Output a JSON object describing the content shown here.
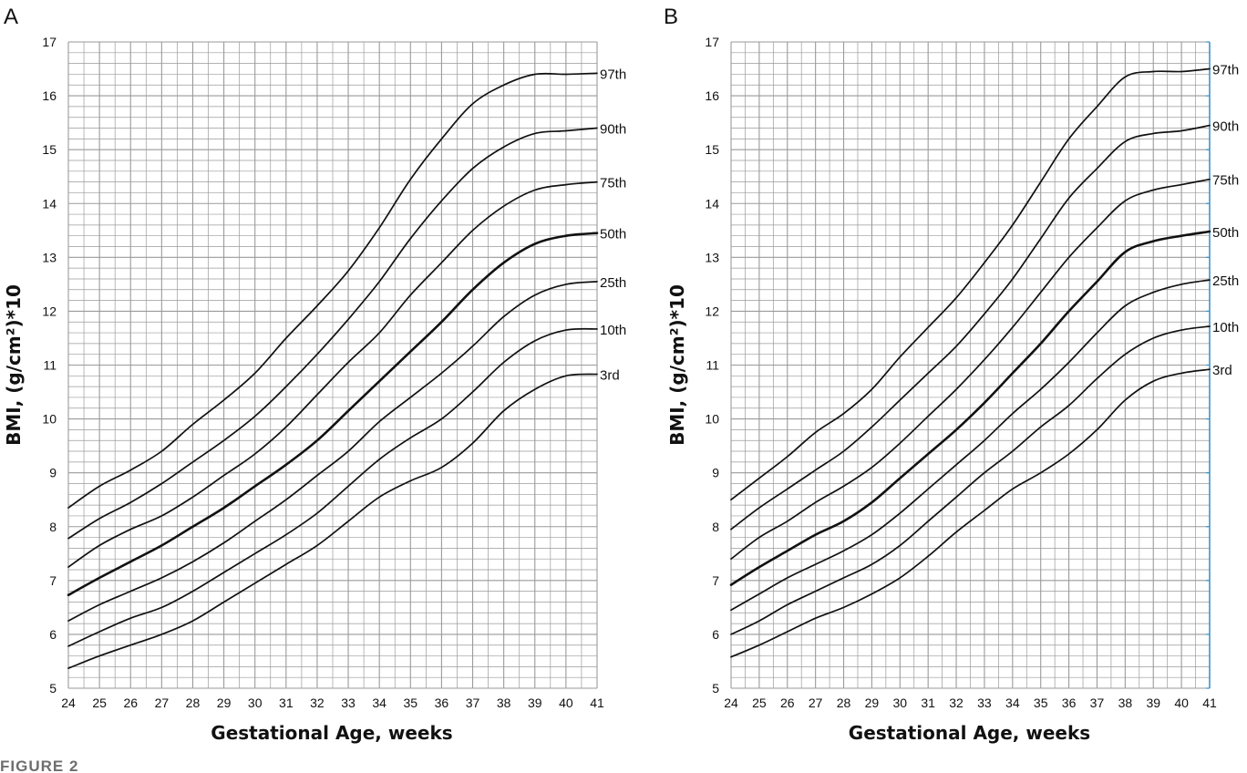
{
  "figure_caption": "FIGURE 2",
  "colors": {
    "grid": "#9a9a9a",
    "curve": "#111111",
    "panelB_right_axis": "#3a8fc9"
  },
  "chart_data": [
    {
      "type": "line",
      "panel": "A",
      "xlabel": "Gestational Age, weeks",
      "ylabel": "BMI, (g/cm²)*10",
      "xlim": [
        24,
        41
      ],
      "ylim": [
        5,
        17
      ],
      "x_ticks": [
        24,
        25,
        26,
        27,
        28,
        29,
        30,
        31,
        32,
        33,
        34,
        35,
        36,
        37,
        38,
        39,
        40,
        41
      ],
      "y_ticks": [
        5,
        6,
        7,
        8,
        9,
        10,
        11,
        12,
        13,
        14,
        15,
        16,
        17
      ],
      "grid": true,
      "x": [
        24,
        25,
        26,
        27,
        28,
        29,
        30,
        31,
        32,
        33,
        34,
        35,
        36,
        37,
        38,
        39,
        40,
        41
      ],
      "series": [
        {
          "name": "97th",
          "values": [
            8.35,
            8.75,
            9.05,
            9.4,
            9.9,
            10.35,
            10.85,
            11.5,
            12.1,
            12.75,
            13.55,
            14.45,
            15.2,
            15.85,
            16.2,
            16.4,
            16.4,
            16.42
          ]
        },
        {
          "name": "90th",
          "values": [
            7.78,
            8.15,
            8.45,
            8.8,
            9.2,
            9.6,
            10.05,
            10.6,
            11.2,
            11.85,
            12.55,
            13.35,
            14.05,
            14.65,
            15.05,
            15.3,
            15.35,
            15.4
          ]
        },
        {
          "name": "75th",
          "values": [
            7.25,
            7.65,
            7.95,
            8.2,
            8.55,
            8.95,
            9.35,
            9.85,
            10.45,
            11.05,
            11.6,
            12.3,
            12.9,
            13.5,
            13.95,
            14.25,
            14.35,
            14.4
          ]
        },
        {
          "name": "50th",
          "values": [
            6.73,
            7.05,
            7.35,
            7.65,
            8.0,
            8.35,
            8.75,
            9.15,
            9.6,
            10.15,
            10.7,
            11.25,
            11.8,
            12.4,
            12.9,
            13.25,
            13.4,
            13.45
          ]
        },
        {
          "name": "25th",
          "values": [
            6.25,
            6.55,
            6.8,
            7.05,
            7.35,
            7.7,
            8.1,
            8.5,
            8.95,
            9.4,
            9.95,
            10.4,
            10.85,
            11.35,
            11.9,
            12.3,
            12.5,
            12.55
          ]
        },
        {
          "name": "10th",
          "values": [
            5.78,
            6.05,
            6.3,
            6.5,
            6.8,
            7.15,
            7.5,
            7.85,
            8.25,
            8.75,
            9.25,
            9.65,
            10.0,
            10.5,
            11.05,
            11.45,
            11.65,
            11.67
          ]
        },
        {
          "name": "3rd",
          "values": [
            5.37,
            5.6,
            5.8,
            6.0,
            6.25,
            6.6,
            6.95,
            7.3,
            7.65,
            8.1,
            8.55,
            8.85,
            9.1,
            9.55,
            10.15,
            10.55,
            10.8,
            10.83
          ]
        }
      ]
    },
    {
      "type": "line",
      "panel": "B",
      "xlabel": "Gestational Age, weeks",
      "ylabel": "BMI, (g/cm²)*10",
      "xlim": [
        24,
        41
      ],
      "ylim": [
        5,
        17
      ],
      "x_ticks": [
        24,
        25,
        26,
        27,
        28,
        29,
        30,
        31,
        32,
        33,
        34,
        35,
        36,
        37,
        38,
        39,
        40,
        41
      ],
      "y_ticks": [
        5,
        6,
        7,
        8,
        9,
        10,
        11,
        12,
        13,
        14,
        15,
        16,
        17
      ],
      "grid": true,
      "x": [
        24,
        25,
        26,
        27,
        28,
        29,
        30,
        31,
        32,
        33,
        34,
        35,
        36,
        37,
        38,
        39,
        40,
        41
      ],
      "series": [
        {
          "name": "97th",
          "values": [
            8.5,
            8.9,
            9.3,
            9.75,
            10.1,
            10.55,
            11.15,
            11.7,
            12.25,
            12.9,
            13.6,
            14.4,
            15.2,
            15.8,
            16.35,
            16.45,
            16.45,
            16.5
          ]
        },
        {
          "name": "90th",
          "values": [
            7.95,
            8.35,
            8.7,
            9.05,
            9.4,
            9.85,
            10.35,
            10.85,
            11.35,
            11.95,
            12.6,
            13.35,
            14.1,
            14.65,
            15.15,
            15.3,
            15.35,
            15.45
          ]
        },
        {
          "name": "75th",
          "values": [
            7.4,
            7.8,
            8.1,
            8.45,
            8.75,
            9.1,
            9.55,
            10.05,
            10.55,
            11.1,
            11.7,
            12.35,
            13.0,
            13.55,
            14.05,
            14.25,
            14.35,
            14.45
          ]
        },
        {
          "name": "50th",
          "values": [
            6.92,
            7.25,
            7.55,
            7.85,
            8.1,
            8.45,
            8.9,
            9.35,
            9.8,
            10.3,
            10.85,
            11.4,
            12.0,
            12.55,
            13.1,
            13.3,
            13.4,
            13.48
          ]
        },
        {
          "name": "25th",
          "values": [
            6.45,
            6.75,
            7.05,
            7.3,
            7.55,
            7.85,
            8.25,
            8.7,
            9.15,
            9.6,
            10.1,
            10.55,
            11.05,
            11.6,
            12.1,
            12.35,
            12.5,
            12.58
          ]
        },
        {
          "name": "10th",
          "values": [
            6.0,
            6.25,
            6.55,
            6.8,
            7.05,
            7.3,
            7.65,
            8.1,
            8.55,
            9.0,
            9.4,
            9.85,
            10.25,
            10.75,
            11.2,
            11.5,
            11.65,
            11.72
          ]
        },
        {
          "name": "3rd",
          "values": [
            5.58,
            5.8,
            6.05,
            6.3,
            6.5,
            6.75,
            7.05,
            7.45,
            7.9,
            8.3,
            8.7,
            9.0,
            9.35,
            9.8,
            10.35,
            10.7,
            10.85,
            10.92
          ]
        }
      ]
    }
  ]
}
